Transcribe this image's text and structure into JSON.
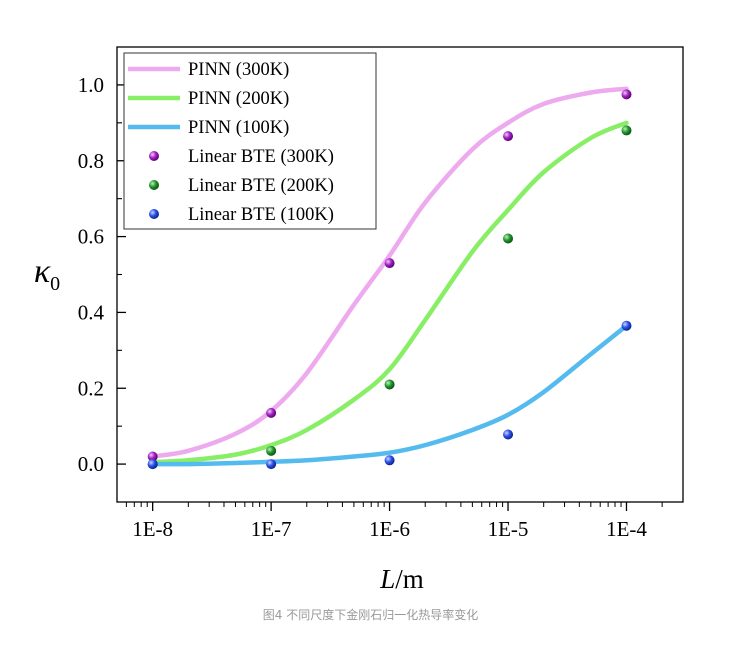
{
  "caption": "图4 不同尺度下金刚石归一化热导率变化",
  "chart_data": {
    "type": "line",
    "xscale": "log",
    "xlim": [
      5e-09,
      0.0003
    ],
    "ylim": [
      -0.1,
      1.1
    ],
    "x_ticks": [
      1e-08,
      1e-07,
      1e-06,
      1e-05,
      0.0001
    ],
    "x_tick_labels": [
      "1E-8",
      "1E-7",
      "1E-6",
      "1E-5",
      "1E-4"
    ],
    "y_ticks": [
      0.0,
      0.2,
      0.4,
      0.6,
      0.8,
      1.0
    ],
    "y_tick_labels": [
      "0.0",
      "0.2",
      "0.4",
      "0.6",
      "0.8",
      "1.0"
    ],
    "xlabel_italic": "L",
    "xlabel_rest": "/m",
    "ylabel_main": "κ",
    "ylabel_sub": "0",
    "legend_position": "top-left",
    "curves": [
      {
        "name": "PINN (300K)",
        "color": "#eeaaee",
        "x": [
          1e-08,
          2e-08,
          5e-08,
          1e-07,
          2e-07,
          5e-07,
          1e-06,
          2e-06,
          5e-06,
          1e-05,
          2e-05,
          5e-05,
          0.0001
        ],
        "y": [
          0.02,
          0.035,
          0.08,
          0.14,
          0.24,
          0.42,
          0.55,
          0.69,
          0.83,
          0.9,
          0.95,
          0.98,
          0.99
        ]
      },
      {
        "name": "PINN (200K)",
        "color": "#88ee66",
        "x": [
          1e-08,
          2e-08,
          5e-08,
          1e-07,
          2e-07,
          5e-07,
          1e-06,
          2e-06,
          5e-06,
          1e-05,
          2e-05,
          5e-05,
          0.0001
        ],
        "y": [
          0.005,
          0.01,
          0.025,
          0.05,
          0.09,
          0.17,
          0.25,
          0.38,
          0.56,
          0.67,
          0.77,
          0.86,
          0.9
        ]
      },
      {
        "name": "PINN (100K)",
        "color": "#55bbee",
        "x": [
          1e-08,
          2e-08,
          5e-08,
          1e-07,
          2e-07,
          5e-07,
          1e-06,
          2e-06,
          5e-06,
          1e-05,
          2e-05,
          5e-05,
          0.0001
        ],
        "y": [
          0.0,
          0.0,
          0.003,
          0.006,
          0.01,
          0.02,
          0.03,
          0.05,
          0.09,
          0.13,
          0.19,
          0.29,
          0.365
        ]
      }
    ],
    "points": [
      {
        "name": "Linear BTE (300K)",
        "color": "#a020c0",
        "x": [
          1e-08,
          1e-07,
          1e-06,
          1e-05,
          0.0001
        ],
        "y": [
          0.02,
          0.135,
          0.53,
          0.865,
          0.975
        ]
      },
      {
        "name": "Linear BTE (200K)",
        "color": "#20962c",
        "x": [
          1e-08,
          1e-07,
          1e-06,
          1e-05,
          0.0001
        ],
        "y": [
          0.0,
          0.035,
          0.21,
          0.595,
          0.88
        ]
      },
      {
        "name": "Linear BTE (100K)",
        "color": "#2a4fe8",
        "x": [
          1e-08,
          1e-07,
          1e-06,
          1e-05,
          0.0001
        ],
        "y": [
          0.0,
          0.0,
          0.01,
          0.078,
          0.365
        ]
      }
    ]
  }
}
